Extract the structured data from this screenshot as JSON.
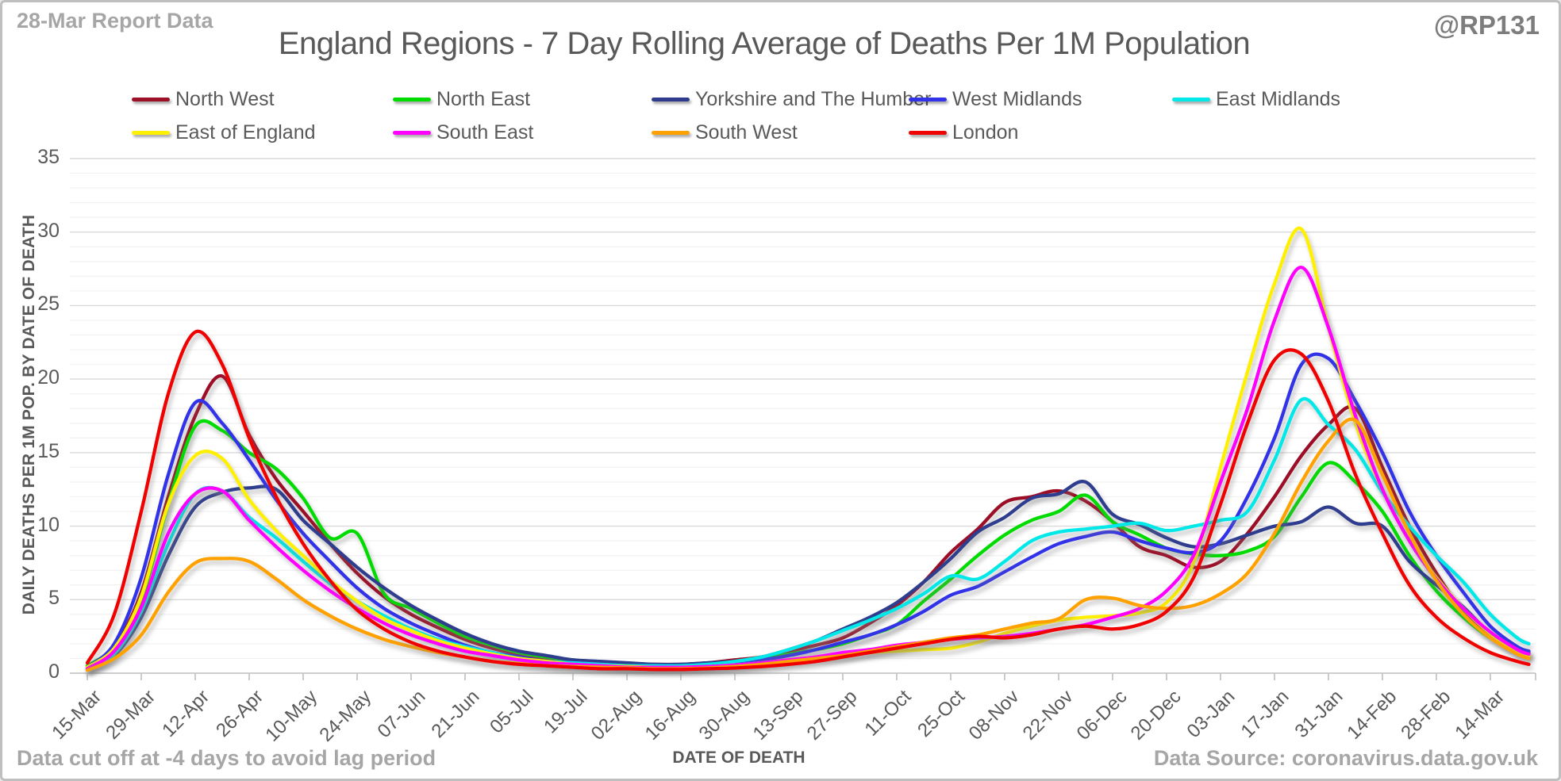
{
  "header": {
    "report_label": "28-Mar Report Data",
    "watermark": "@RP131"
  },
  "footer": {
    "left_note": "Data cut off at -4 days to avoid lag period",
    "right_note": "Data Source: coronavirus.data.gov.uk"
  },
  "chart_data": {
    "type": "line",
    "title": "England Regions - 7 Day Rolling Average of Deaths Per 1M Population",
    "xlabel": "DATE OF DEATH",
    "ylabel": "DAILY DEATHS PER 1M POP. BY DATE OF DEATH",
    "ylim": [
      0,
      35
    ],
    "y_ticks": [
      0,
      5,
      10,
      15,
      20,
      25,
      30,
      35
    ],
    "y_minor_grid_step": 1,
    "grid": "horizontal",
    "legend_position": "top",
    "x_tick_interval_days": 14,
    "x_tick_labels": [
      "15-Mar",
      "29-Mar",
      "12-Apr",
      "26-Apr",
      "10-May",
      "24-May",
      "07-Jun",
      "21-Jun",
      "05-Jul",
      "19-Jul",
      "02-Aug",
      "16-Aug",
      "30-Aug",
      "13-Sep",
      "27-Sep",
      "11-Oct",
      "25-Oct",
      "08-Nov",
      "22-Nov",
      "06-Dec",
      "20-Dec",
      "03-Jan",
      "17-Jan",
      "31-Jan",
      "14-Feb",
      "28-Feb",
      "14-Mar"
    ],
    "sample_days": [
      0,
      7,
      14,
      21,
      28,
      35,
      42,
      49,
      56,
      63,
      70,
      77,
      84,
      91,
      98,
      105,
      112,
      119,
      126,
      133,
      140,
      147,
      154,
      161,
      168,
      175,
      182,
      189,
      196,
      203,
      210,
      217,
      224,
      231,
      238,
      245,
      252,
      259,
      266,
      273,
      280,
      287,
      294,
      301,
      308,
      315,
      322,
      329,
      336,
      343,
      350,
      357,
      364,
      371,
      374
    ],
    "series": [
      {
        "name": "North West",
        "color": "#9c1127",
        "values": [
          0.4,
          1.8,
          5.5,
          12.0,
          17.5,
          20.2,
          16.2,
          13.2,
          11.0,
          8.8,
          6.8,
          5.2,
          4.0,
          3.1,
          2.3,
          1.7,
          1.3,
          1.0,
          0.8,
          0.7,
          0.6,
          0.6,
          0.6,
          0.7,
          0.9,
          1.1,
          1.5,
          1.9,
          2.4,
          3.4,
          4.6,
          6.2,
          8.2,
          9.8,
          11.6,
          12.0,
          12.4,
          11.7,
          10.3,
          8.6,
          8.0,
          7.2,
          7.6,
          9.5,
          12.0,
          14.8,
          16.9,
          18.0,
          14.0,
          10.0,
          6.8,
          4.2,
          2.6,
          1.4,
          1.2
        ]
      },
      {
        "name": "North East",
        "color": "#00dc00",
        "values": [
          0.5,
          1.8,
          5.0,
          11.5,
          16.8,
          16.5,
          15.0,
          13.9,
          11.9,
          9.2,
          9.5,
          5.4,
          4.4,
          3.4,
          2.5,
          1.9,
          1.4,
          1.1,
          0.9,
          0.7,
          0.6,
          0.5,
          0.5,
          0.6,
          0.8,
          1.0,
          1.3,
          1.6,
          2.0,
          2.6,
          3.3,
          4.9,
          6.4,
          8.0,
          9.4,
          10.4,
          11.0,
          12.1,
          10.3,
          9.4,
          8.5,
          8.1,
          8.0,
          8.3,
          9.3,
          12.0,
          14.3,
          13.0,
          11.0,
          8.0,
          5.6,
          3.8,
          2.4,
          1.5,
          1.3
        ]
      },
      {
        "name": "Yorkshire and The Humber",
        "color": "#2f3c8e",
        "values": [
          0.3,
          1.2,
          3.8,
          8.0,
          11.3,
          12.3,
          12.6,
          12.5,
          10.4,
          8.8,
          7.2,
          5.8,
          4.6,
          3.6,
          2.7,
          2.0,
          1.5,
          1.2,
          0.9,
          0.8,
          0.7,
          0.6,
          0.6,
          0.7,
          0.8,
          1.1,
          1.6,
          2.2,
          3.0,
          3.8,
          4.8,
          6.2,
          7.8,
          9.6,
          10.6,
          11.9,
          12.2,
          13.0,
          10.8,
          10.1,
          9.2,
          8.6,
          8.8,
          9.4,
          10.0,
          10.3,
          11.3,
          10.2,
          10.0,
          7.6,
          6.0,
          4.5,
          2.7,
          1.6,
          1.4
        ]
      },
      {
        "name": "West Midlands",
        "color": "#3232e8",
        "values": [
          0.4,
          2.0,
          6.5,
          13.5,
          18.4,
          17.0,
          14.5,
          11.8,
          9.5,
          7.6,
          5.8,
          4.4,
          3.4,
          2.6,
          1.9,
          1.4,
          1.1,
          0.8,
          0.7,
          0.6,
          0.5,
          0.5,
          0.5,
          0.6,
          0.7,
          0.9,
          1.2,
          1.6,
          2.1,
          2.6,
          3.3,
          4.2,
          5.3,
          5.9,
          6.9,
          7.9,
          8.8,
          9.3,
          9.6,
          9.0,
          8.5,
          8.2,
          9.0,
          12.0,
          16.0,
          21.0,
          21.4,
          18.5,
          15.0,
          11.0,
          8.0,
          5.5,
          3.2,
          1.8,
          1.5
        ]
      },
      {
        "name": "East Midlands",
        "color": "#00e8e8",
        "values": [
          0.3,
          1.3,
          4.2,
          8.8,
          12.2,
          12.4,
          10.6,
          9.2,
          7.6,
          6.1,
          4.9,
          3.9,
          3.0,
          2.3,
          1.8,
          1.4,
          1.0,
          0.8,
          0.7,
          0.6,
          0.5,
          0.5,
          0.5,
          0.6,
          0.8,
          1.1,
          1.6,
          2.2,
          2.9,
          3.6,
          4.4,
          5.4,
          6.6,
          6.4,
          7.6,
          9.0,
          9.6,
          9.8,
          10.0,
          10.2,
          9.7,
          10.0,
          10.4,
          11.0,
          14.5,
          18.6,
          16.9,
          15.2,
          12.3,
          10.0,
          8.0,
          6.2,
          4.0,
          2.4,
          2.0
        ]
      },
      {
        "name": "East of England",
        "color": "#fff000",
        "values": [
          0.4,
          1.7,
          5.2,
          11.5,
          14.8,
          14.6,
          11.8,
          9.7,
          8.0,
          6.3,
          4.9,
          3.7,
          2.9,
          2.2,
          1.7,
          1.3,
          1.0,
          0.8,
          0.6,
          0.5,
          0.45,
          0.4,
          0.4,
          0.45,
          0.55,
          0.7,
          0.9,
          1.1,
          1.2,
          1.4,
          1.5,
          1.6,
          1.7,
          2.1,
          2.7,
          3.2,
          3.6,
          3.8,
          3.9,
          4.1,
          4.8,
          7.5,
          14.0,
          20.5,
          26.5,
          30.2,
          23.5,
          17.0,
          12.5,
          9.0,
          6.5,
          4.4,
          2.7,
          1.5,
          1.2
        ]
      },
      {
        "name": "South East",
        "color": "#ff00ff",
        "values": [
          0.3,
          1.5,
          4.5,
          9.5,
          12.2,
          12.4,
          10.4,
          8.6,
          7.0,
          5.6,
          4.4,
          3.4,
          2.6,
          2.0,
          1.5,
          1.2,
          0.9,
          0.7,
          0.6,
          0.5,
          0.4,
          0.4,
          0.4,
          0.45,
          0.55,
          0.7,
          0.9,
          1.1,
          1.4,
          1.6,
          1.9,
          2.1,
          2.3,
          2.4,
          2.5,
          2.7,
          3.0,
          3.3,
          3.8,
          4.4,
          5.6,
          8.0,
          13.0,
          18.0,
          24.0,
          27.6,
          23.5,
          17.5,
          12.5,
          9.0,
          6.4,
          4.4,
          2.8,
          1.6,
          1.3
        ]
      },
      {
        "name": "South West",
        "color": "#ffa200",
        "values": [
          0.2,
          1.0,
          2.6,
          5.5,
          7.5,
          7.8,
          7.6,
          6.4,
          5.0,
          3.9,
          3.0,
          2.3,
          1.8,
          1.4,
          1.1,
          0.8,
          0.65,
          0.5,
          0.45,
          0.4,
          0.35,
          0.3,
          0.3,
          0.35,
          0.45,
          0.6,
          0.8,
          1.0,
          1.2,
          1.5,
          1.8,
          2.1,
          2.4,
          2.6,
          3.0,
          3.4,
          3.7,
          5.0,
          5.1,
          4.6,
          4.4,
          4.6,
          5.4,
          6.8,
          9.5,
          13.0,
          15.8,
          17.2,
          13.5,
          9.5,
          6.3,
          4.0,
          2.4,
          1.3,
          1.0
        ]
      },
      {
        "name": "London",
        "color": "#f10000",
        "values": [
          0.7,
          4.0,
          11.0,
          19.0,
          23.2,
          21.0,
          16.0,
          12.0,
          8.8,
          6.3,
          4.3,
          3.0,
          2.1,
          1.5,
          1.1,
          0.8,
          0.6,
          0.5,
          0.4,
          0.3,
          0.3,
          0.25,
          0.25,
          0.3,
          0.35,
          0.45,
          0.6,
          0.8,
          1.1,
          1.4,
          1.7,
          2.0,
          2.3,
          2.5,
          2.4,
          2.6,
          3.0,
          3.2,
          3.0,
          3.3,
          4.2,
          6.5,
          11.5,
          17.0,
          21.3,
          21.7,
          18.5,
          13.5,
          9.5,
          6.0,
          3.8,
          2.4,
          1.4,
          0.8,
          0.6
        ]
      }
    ],
    "colors": {
      "grid_major": "#d9d9d9",
      "grid_minor": "#f2f2f2",
      "axis_line": "#bfbfbf",
      "text": "#595959",
      "muted_text": "#a6a6a6"
    }
  }
}
